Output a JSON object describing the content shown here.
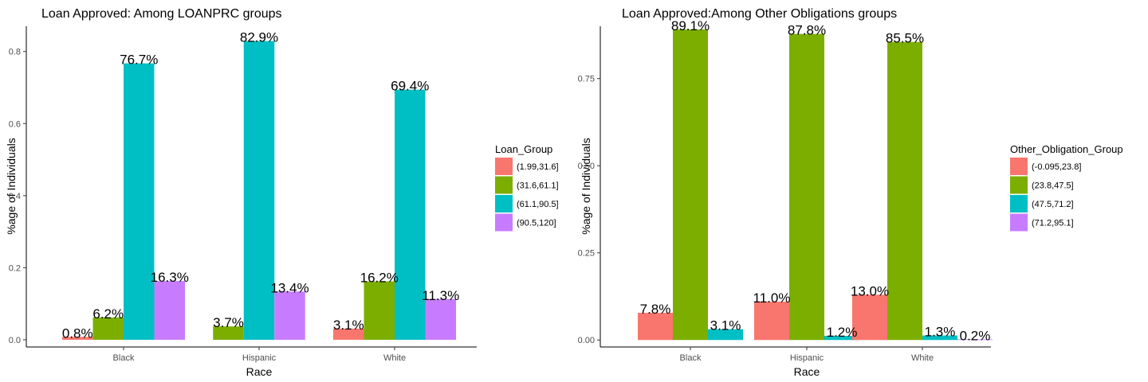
{
  "chart_data": [
    {
      "type": "bar",
      "title": "Loan Approved: Among LOANPRC groups",
      "xlabel": "Race",
      "ylabel": "%age of Individuals",
      "categories": [
        "Black",
        "Hispanic",
        "White"
      ],
      "ylim": [
        -0.02,
        0.87
      ],
      "yticks": [
        0.0,
        0.2,
        0.4,
        0.6,
        0.8
      ],
      "ytick_labels": [
        "0.0",
        "0.2",
        "0.4",
        "0.6",
        "0.8"
      ],
      "legend_title": "Loan_Group",
      "legend_position": "right",
      "grid": false,
      "series": [
        {
          "name": "(1.99,31.6]",
          "color": "#F8766D",
          "values": [
            0.008,
            null,
            0.031
          ],
          "labels": [
            "0.8%",
            "",
            "3.1%"
          ]
        },
        {
          "name": "(31.6,61.1]",
          "color": "#7CAE00",
          "values": [
            0.062,
            0.037,
            0.162
          ],
          "labels": [
            "6.2%",
            "3.7%",
            "16.2%"
          ]
        },
        {
          "name": "(61.1,90.5]",
          "color": "#00BFC4",
          "values": [
            0.767,
            0.829,
            0.694
          ],
          "labels": [
            "76.7%",
            "82.9%",
            "69.4%"
          ]
        },
        {
          "name": "(90.5,120]",
          "color": "#C77CFF",
          "values": [
            0.163,
            0.134,
            0.113
          ],
          "labels": [
            "16.3%",
            "13.4%",
            "11.3%"
          ]
        }
      ]
    },
    {
      "type": "bar",
      "title": "Loan Approved:Among Other Obligations groups",
      "xlabel": "Race",
      "ylabel": "%age of Individuals",
      "categories": [
        "Black",
        "Hispanic",
        "White"
      ],
      "ylim": [
        -0.02,
        0.9
      ],
      "yticks": [
        0.0,
        0.25,
        0.5,
        0.75
      ],
      "ytick_labels": [
        "0.00",
        "0.25",
        "0.50",
        "0.75"
      ],
      "legend_title": "Other_Obligation_Group",
      "legend_position": "right",
      "grid": false,
      "series": [
        {
          "name": "(-0.095,23.8]",
          "color": "#F8766D",
          "values": [
            0.078,
            0.11,
            0.13
          ],
          "labels": [
            "7.8%",
            "11.0%",
            "13.0%"
          ]
        },
        {
          "name": "(23.8,47.5]",
          "color": "#7CAE00",
          "values": [
            0.891,
            0.878,
            0.855
          ],
          "labels": [
            "89.1%",
            "87.8%",
            "85.5%"
          ]
        },
        {
          "name": "(47.5,71.2]",
          "color": "#00BFC4",
          "values": [
            0.031,
            0.012,
            0.013
          ],
          "labels": [
            "3.1%",
            "1.2%",
            "1.3%"
          ]
        },
        {
          "name": "(71.2,95.1]",
          "color": "#C77CFF",
          "values": [
            null,
            null,
            0.002
          ],
          "labels": [
            "",
            "",
            "0.2%"
          ]
        }
      ]
    }
  ]
}
